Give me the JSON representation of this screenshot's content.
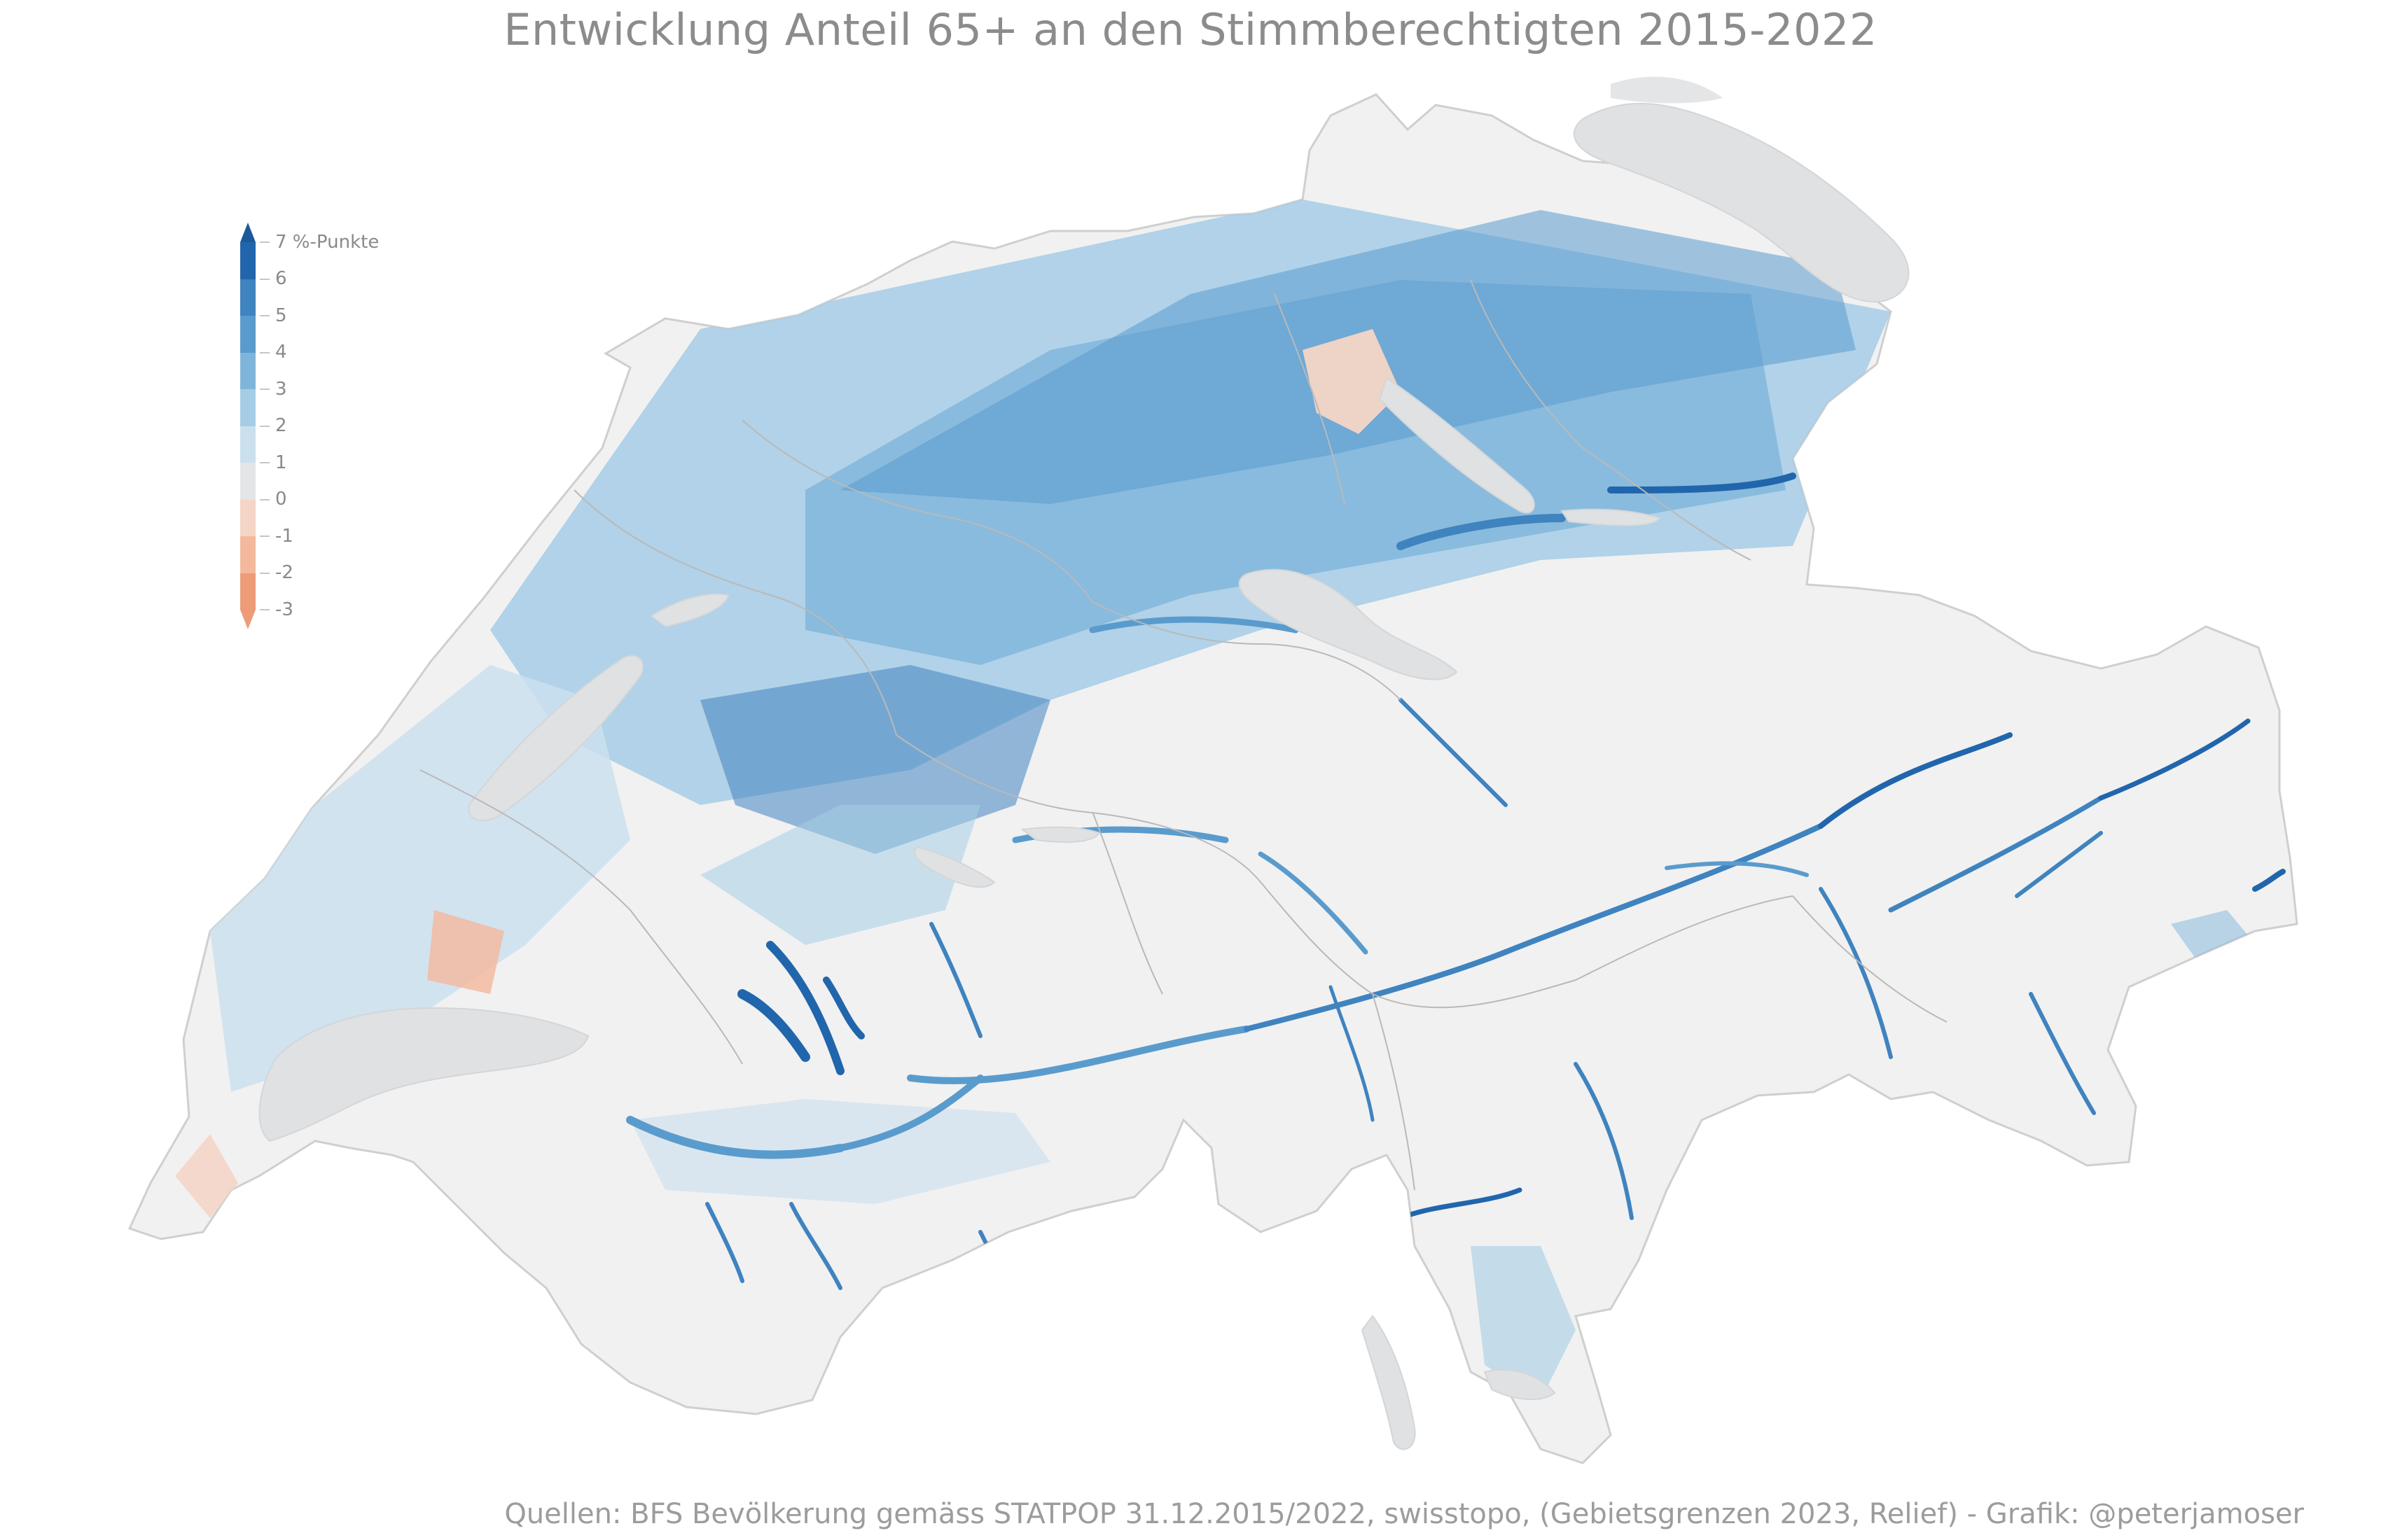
{
  "title": "Entwicklung Anteil 65+ an den Stimmberechtigten 2015-2022",
  "source": "Quellen: BFS Bevölkerung gemäss STATPOP 31.12.2015/2022, swisstopo, (Gebietsgrenzen 2023, Relief) - Grafik: @peterjamoser",
  "legend": {
    "top_label": "7 %-Punkte",
    "labels": [
      "6",
      "5",
      "4",
      "3",
      "2",
      "1",
      "0",
      "-1",
      "-2",
      "-3"
    ],
    "colors": [
      "#2166ac",
      "#3f83bf",
      "#5a9bcd",
      "#80b5db",
      "#a6cde6",
      "#cbe0ee",
      "#e8ecee",
      "#f4d5c6",
      "#f4b89c",
      "#ee9b78"
    ]
  },
  "map": {
    "land_color": "#f2f2f2",
    "lake_color": "#dfe1e3",
    "border_color": "#b9b9b9"
  }
}
